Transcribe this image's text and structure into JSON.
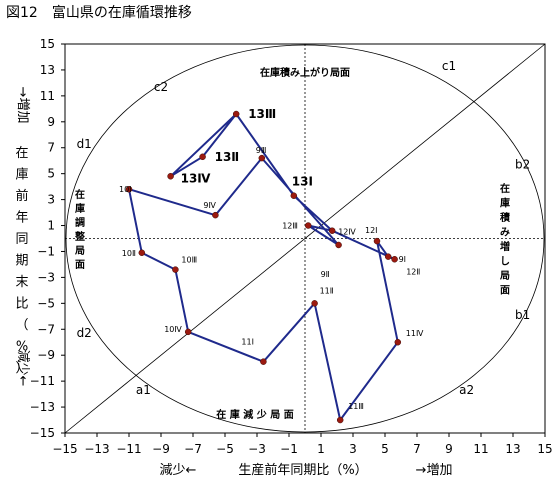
{
  "figure_title": "図12　富山県の在庫循環推移",
  "chart_data": {
    "type": "line",
    "title": "",
    "xlabel": "生産前年同期比（%）",
    "x_left_note": "減少←",
    "x_right_note": "→増加",
    "ylabel_chars": [
      "在",
      "庫",
      "前",
      "年",
      "同",
      "期",
      "末",
      "比",
      "（",
      "%",
      "）"
    ],
    "y_top_note": "→増加",
    "y_bottom_note": "減少←",
    "xlim": [
      -15,
      15
    ],
    "ylim": [
      -15,
      15
    ],
    "xticks": [
      "−15",
      "−13",
      "−11",
      "−9",
      "−7",
      "−5",
      "−3",
      "−1",
      "1",
      "3",
      "5",
      "7",
      "9",
      "11",
      "13",
      "15"
    ],
    "yticks": [
      "15",
      "13",
      "11",
      "9",
      "7",
      "5",
      "3",
      "1",
      "−1",
      "−3",
      "−5",
      "−7",
      "−9",
      "−11",
      "−13",
      "−15"
    ],
    "grid": false,
    "reference_line": "y = x",
    "phases": {
      "top": "在庫積み上がり局面",
      "bottom": "在 庫 減 少 局 面",
      "left_chars": [
        "在",
        "庫",
        "調",
        "整",
        "局",
        "面"
      ],
      "right_chars": [
        "在",
        "庫",
        "積",
        "み",
        "増",
        "し",
        "局",
        "面"
      ]
    },
    "quadrant_labels": [
      {
        "name": "c1",
        "x": 9,
        "y": 13.3
      },
      {
        "name": "c2",
        "x": -9,
        "y": 11.7
      },
      {
        "name": "d1",
        "x": -13.8,
        "y": 7.3
      },
      {
        "name": "b2",
        "x": 13.6,
        "y": 5.7
      },
      {
        "name": "d2",
        "x": -13.8,
        "y": -7.3
      },
      {
        "name": "b1",
        "x": 13.6,
        "y": -5.9
      },
      {
        "name": "a1",
        "x": -10.1,
        "y": -11.7
      },
      {
        "name": "a2",
        "x": 10.1,
        "y": -11.7
      }
    ],
    "series": [
      {
        "color": "#1f2a8c",
        "points": [
          {
            "label": "13Ⅲ",
            "x": -4.3,
            "y": 9.6,
            "bold": true
          },
          {
            "label": "13Ⅱ",
            "x": -6.4,
            "y": 6.3,
            "bold": true
          },
          {
            "label": "13Ⅳ",
            "x": -8.4,
            "y": 4.8,
            "bold": true
          },
          {
            "label": "9Ⅲ",
            "x": -2.7,
            "y": 6.2
          },
          {
            "label": "9Ⅳ",
            "x": -5.6,
            "y": 1.8
          },
          {
            "label": "13Ⅰ",
            "x": -0.7,
            "y": 3.3,
            "bold": true
          },
          {
            "label": "12Ⅳ",
            "x": 1.7,
            "y": 0.6
          },
          {
            "label": "12Ⅲ",
            "x": 0.2,
            "y": 1.0
          },
          {
            "label": "9Ⅱ",
            "x": 2.1,
            "y": -0.5
          },
          {
            "label": "12Ⅰ",
            "x": 4.5,
            "y": -0.2
          },
          {
            "label": "9Ⅰ",
            "x": 5.6,
            "y": -1.6
          },
          {
            "label": "12Ⅱ",
            "x": 5.2,
            "y": -1.4
          },
          {
            "label": "10Ⅰ",
            "x": -11.0,
            "y": 3.8
          },
          {
            "label": "10Ⅱ",
            "x": -10.2,
            "y": -1.1
          },
          {
            "label": "10Ⅲ",
            "x": -8.1,
            "y": -2.4
          },
          {
            "label": "10Ⅳ",
            "x": -7.3,
            "y": -7.2
          },
          {
            "label": "11Ⅰ",
            "x": -2.6,
            "y": -9.5
          },
          {
            "label": "11Ⅱ",
            "x": 0.6,
            "y": -5.0
          },
          {
            "label": "11Ⅲ",
            "x": 2.2,
            "y": -14.0
          },
          {
            "label": "11Ⅳ",
            "x": 5.8,
            "y": -8.0
          }
        ],
        "path_order": [
          "13Ⅲ",
          "13Ⅳ",
          "13Ⅱ",
          "13Ⅲ",
          "13Ⅰ",
          "12Ⅳ",
          "9Ⅰ",
          "12Ⅱ",
          "12Ⅰ",
          "11Ⅳ",
          "11Ⅲ",
          "11Ⅱ",
          "11Ⅰ",
          "10Ⅳ",
          "10Ⅲ",
          "10Ⅱ",
          "10Ⅰ",
          "9Ⅳ",
          "9Ⅲ",
          "9Ⅱ",
          "12Ⅲ",
          "12Ⅳ"
        ]
      }
    ]
  },
  "colors": {
    "series": "#1f2a8c",
    "marker": "#9b1a10",
    "axis": "#000000"
  }
}
